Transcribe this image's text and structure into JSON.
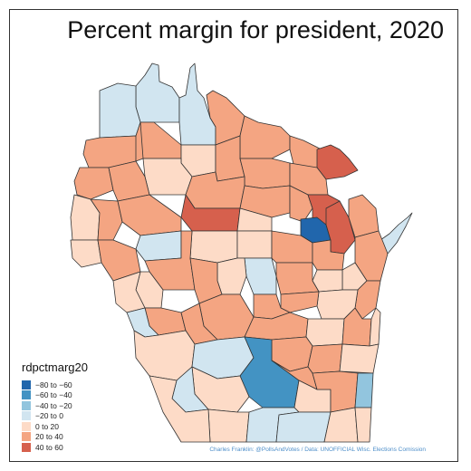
{
  "title": "Percent margin for president, 2020",
  "legend": {
    "title": "rdpctmarg20",
    "items": [
      {
        "label": "−80 to −60",
        "color": "#2166ac"
      },
      {
        "label": "−60 to −40",
        "color": "#4393c3"
      },
      {
        "label": "−40 to −20",
        "color": "#92c5de"
      },
      {
        "label": "−20 to 0",
        "color": "#d1e5f0"
      },
      {
        "label": "0 to 20",
        "color": "#fddbc7"
      },
      {
        "label": "20 to 40",
        "color": "#f4a582"
      },
      {
        "label": "40 to 60",
        "color": "#d6604d"
      }
    ]
  },
  "credit": "Charles Franklin: @PollsAndVotes / Data: UNOFFICIAL Wisc. Elections Comission",
  "colors": {
    "border": "#333333",
    "credit_text": "#4d8ec9"
  }
}
